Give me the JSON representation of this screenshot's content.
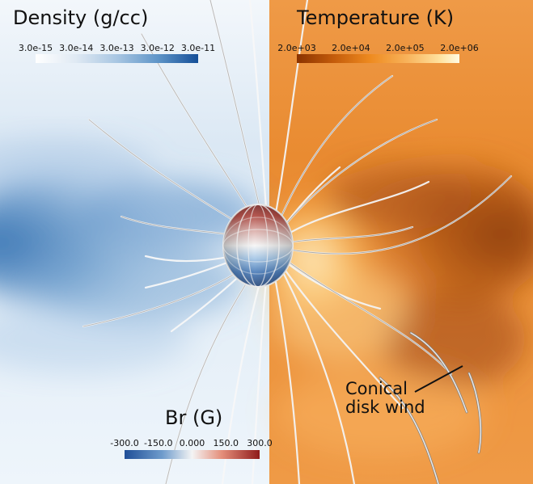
{
  "panels": {
    "density": {
      "title": "Density (g/cc)",
      "ticks": [
        "3.0e-15",
        "3.0e-14",
        "3.0e-13",
        "3.0e-12",
        "3.0e-11"
      ]
    },
    "temperature": {
      "title": "Temperature (K)",
      "ticks": [
        "2.0e+03",
        "2.0e+04",
        "2.0e+05",
        "2.0e+06"
      ]
    },
    "br": {
      "title": "Br (G)",
      "ticks": [
        "-300.0",
        "-150.0",
        "0.000",
        "150.0",
        "300.0"
      ]
    }
  },
  "annotation": {
    "line1": "Conical",
    "line2": "disk wind"
  },
  "colors": {
    "density_background": "#dbe7f2",
    "density_dark": "#2a67a8",
    "temperature_background": "#e48a2d",
    "temperature_dark": "#8f3d0a",
    "field_lines": "#e0e0e0"
  }
}
